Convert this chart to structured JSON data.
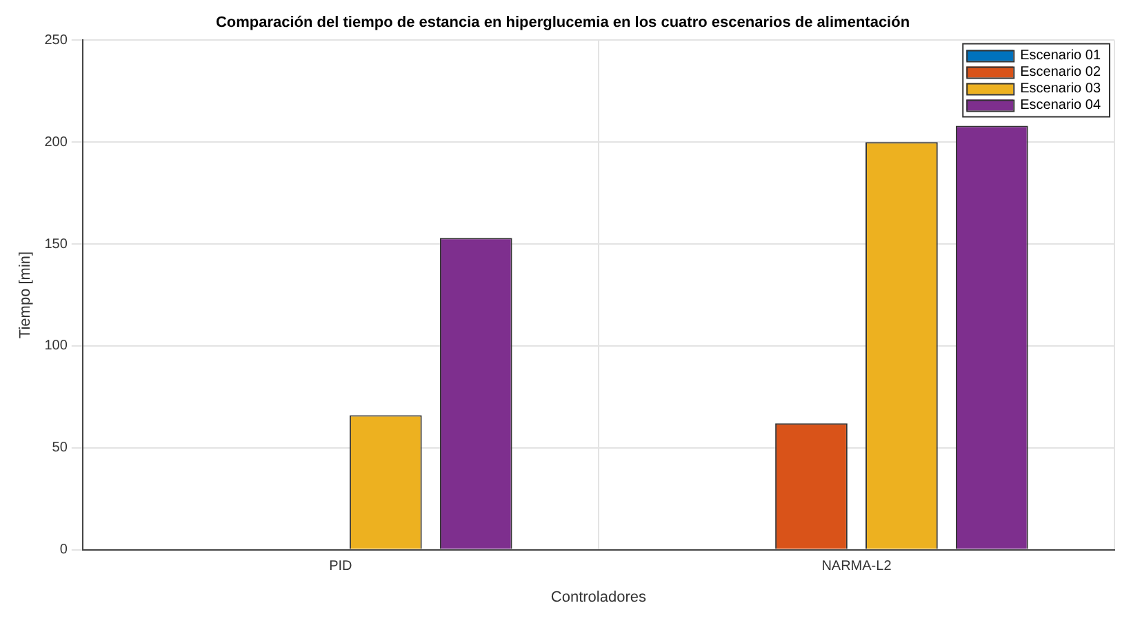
{
  "chart_data": {
    "type": "bar",
    "title": "Comparación del tiempo de estancia en hiperglucemia en los cuatro escenarios de alimentación",
    "xlabel": "Controladores",
    "ylabel": "Tiempo [min]",
    "categories": [
      "PID",
      "NARMA-L2"
    ],
    "series": [
      {
        "name": "Escenario 01",
        "color": "#0072bd",
        "values": [
          0,
          0
        ]
      },
      {
        "name": "Escenario 02",
        "color": "#d95319",
        "values": [
          0,
          62
        ]
      },
      {
        "name": "Escenario 03",
        "color": "#edb120",
        "values": [
          66,
          200
        ]
      },
      {
        "name": "Escenario 04",
        "color": "#7e2f8e",
        "values": [
          153,
          208
        ]
      }
    ],
    "ylim": [
      0,
      250
    ],
    "yticks": [
      0,
      50,
      100,
      150,
      200,
      250
    ],
    "grid": true,
    "legend": "top right"
  }
}
